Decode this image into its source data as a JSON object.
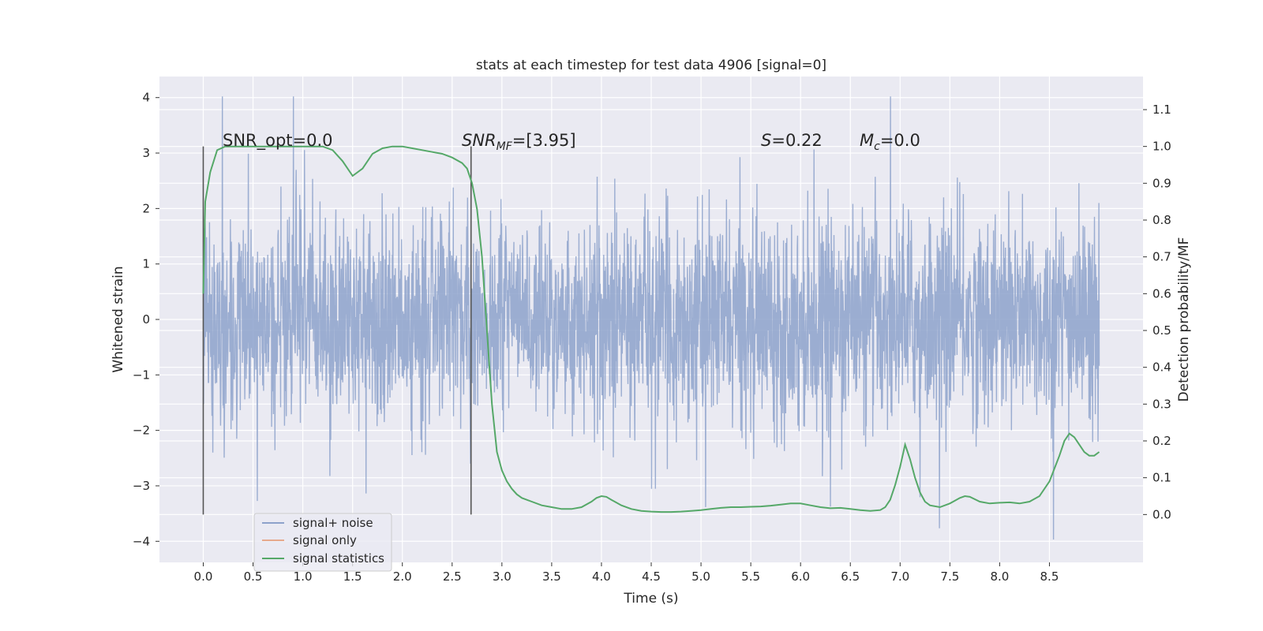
{
  "chart_data": {
    "type": "line",
    "title": "stats at each timestep for test data 4906 [signal=0]",
    "xlabel": "Time (s)",
    "ylabel_left": "Whitened strain",
    "ylabel_right": "Detection probability/MF",
    "xlim": [
      -0.44,
      9.44
    ],
    "ylim_left": [
      -4.38,
      4.38
    ],
    "ylim_right": [
      -0.13,
      1.19
    ],
    "grid": true,
    "legend_placement": "lower-left",
    "x_ticks": [
      "0.0",
      "0.5",
      "1.0",
      "1.5",
      "2.0",
      "2.5",
      "3.0",
      "3.5",
      "4.0",
      "4.5",
      "5.0",
      "5.5",
      "6.0",
      "6.5",
      "7.0",
      "7.5",
      "8.0",
      "8.5"
    ],
    "x_tick_values": [
      0,
      0.5,
      1,
      1.5,
      2,
      2.5,
      3,
      3.5,
      4,
      4.5,
      5,
      5.5,
      6,
      6.5,
      7,
      7.5,
      8,
      8.5
    ],
    "y_left_ticks": [
      "−4",
      "−3",
      "−2",
      "−1",
      "0",
      "1",
      "2",
      "3",
      "4"
    ],
    "y_left_tick_values": [
      -4,
      -3,
      -2,
      -1,
      0,
      1,
      2,
      3,
      4
    ],
    "y_right_ticks": [
      "0.0",
      "0.1",
      "0.2",
      "0.3",
      "0.4",
      "0.5",
      "0.6",
      "0.7",
      "0.8",
      "0.9",
      "1.0",
      "1.1"
    ],
    "y_right_tick_values": [
      0,
      0.1,
      0.2,
      0.3,
      0.4,
      0.5,
      0.6,
      0.7,
      0.8,
      0.9,
      1.0,
      1.1
    ],
    "annotations": {
      "snr_opt": "SNR_opt=0.0",
      "snr_mf_pre": "SNR",
      "snr_mf_sub": "MF",
      "snr_mf_post": "=[3.95]",
      "s_pre": "S",
      "s_post": "=0.22",
      "mc_pre": "M",
      "mc_sub": "c",
      "mc_post": "=0.0"
    },
    "vertical_markers_x": [
      0.0,
      2.69
    ],
    "series": [
      {
        "name": "signal+ noise",
        "color": "#8da2cb",
        "x_range": [
          0.0,
          9.0
        ],
        "typical_abs": 1.25,
        "peak_max": 4.02,
        "peak_min": -4.02
      },
      {
        "name": "signal only",
        "color": "#e6a98d",
        "values": []
      },
      {
        "name": "signal statistics",
        "color": "#55a868",
        "x": [
          0.0,
          0.02,
          0.07,
          0.14,
          0.22,
          0.3,
          0.5,
          0.8,
          1.1,
          1.2,
          1.3,
          1.4,
          1.5,
          1.6,
          1.7,
          1.8,
          1.9,
          2.0,
          2.1,
          2.2,
          2.3,
          2.4,
          2.5,
          2.6,
          2.65,
          2.7,
          2.75,
          2.8,
          2.85,
          2.9,
          2.95,
          3.0,
          3.05,
          3.1,
          3.15,
          3.2,
          3.3,
          3.4,
          3.5,
          3.6,
          3.7,
          3.8,
          3.9,
          3.95,
          4.0,
          4.05,
          4.1,
          4.2,
          4.3,
          4.4,
          4.5,
          4.6,
          4.7,
          4.8,
          4.9,
          5.0,
          5.1,
          5.2,
          5.3,
          5.4,
          5.5,
          5.6,
          5.7,
          5.8,
          5.9,
          6.0,
          6.1,
          6.2,
          6.3,
          6.4,
          6.5,
          6.6,
          6.7,
          6.8,
          6.85,
          6.9,
          6.95,
          7.0,
          7.05,
          7.1,
          7.15,
          7.2,
          7.25,
          7.3,
          7.4,
          7.5,
          7.6,
          7.65,
          7.7,
          7.8,
          7.9,
          8.0,
          8.1,
          8.2,
          8.3,
          8.4,
          8.5,
          8.6,
          8.65,
          8.7,
          8.75,
          8.8,
          8.85,
          8.9,
          8.95,
          9.0
        ],
        "values": [
          0.6,
          0.85,
          0.93,
          0.99,
          1.0,
          1.0,
          1.0,
          1.0,
          1.0,
          1.0,
          0.99,
          0.96,
          0.92,
          0.94,
          0.98,
          0.995,
          1.0,
          1.0,
          0.995,
          0.99,
          0.985,
          0.98,
          0.97,
          0.955,
          0.94,
          0.9,
          0.83,
          0.7,
          0.5,
          0.3,
          0.17,
          0.12,
          0.09,
          0.07,
          0.055,
          0.045,
          0.035,
          0.025,
          0.02,
          0.015,
          0.015,
          0.02,
          0.035,
          0.045,
          0.05,
          0.048,
          0.04,
          0.025,
          0.015,
          0.01,
          0.008,
          0.007,
          0.007,
          0.008,
          0.01,
          0.012,
          0.015,
          0.018,
          0.02,
          0.02,
          0.021,
          0.022,
          0.024,
          0.027,
          0.03,
          0.03,
          0.025,
          0.02,
          0.017,
          0.018,
          0.015,
          0.012,
          0.01,
          0.012,
          0.02,
          0.04,
          0.08,
          0.13,
          0.19,
          0.15,
          0.1,
          0.06,
          0.035,
          0.025,
          0.02,
          0.03,
          0.045,
          0.05,
          0.048,
          0.035,
          0.03,
          0.032,
          0.033,
          0.03,
          0.035,
          0.05,
          0.09,
          0.16,
          0.2,
          0.22,
          0.21,
          0.19,
          0.17,
          0.16,
          0.16,
          0.17
        ]
      }
    ]
  }
}
